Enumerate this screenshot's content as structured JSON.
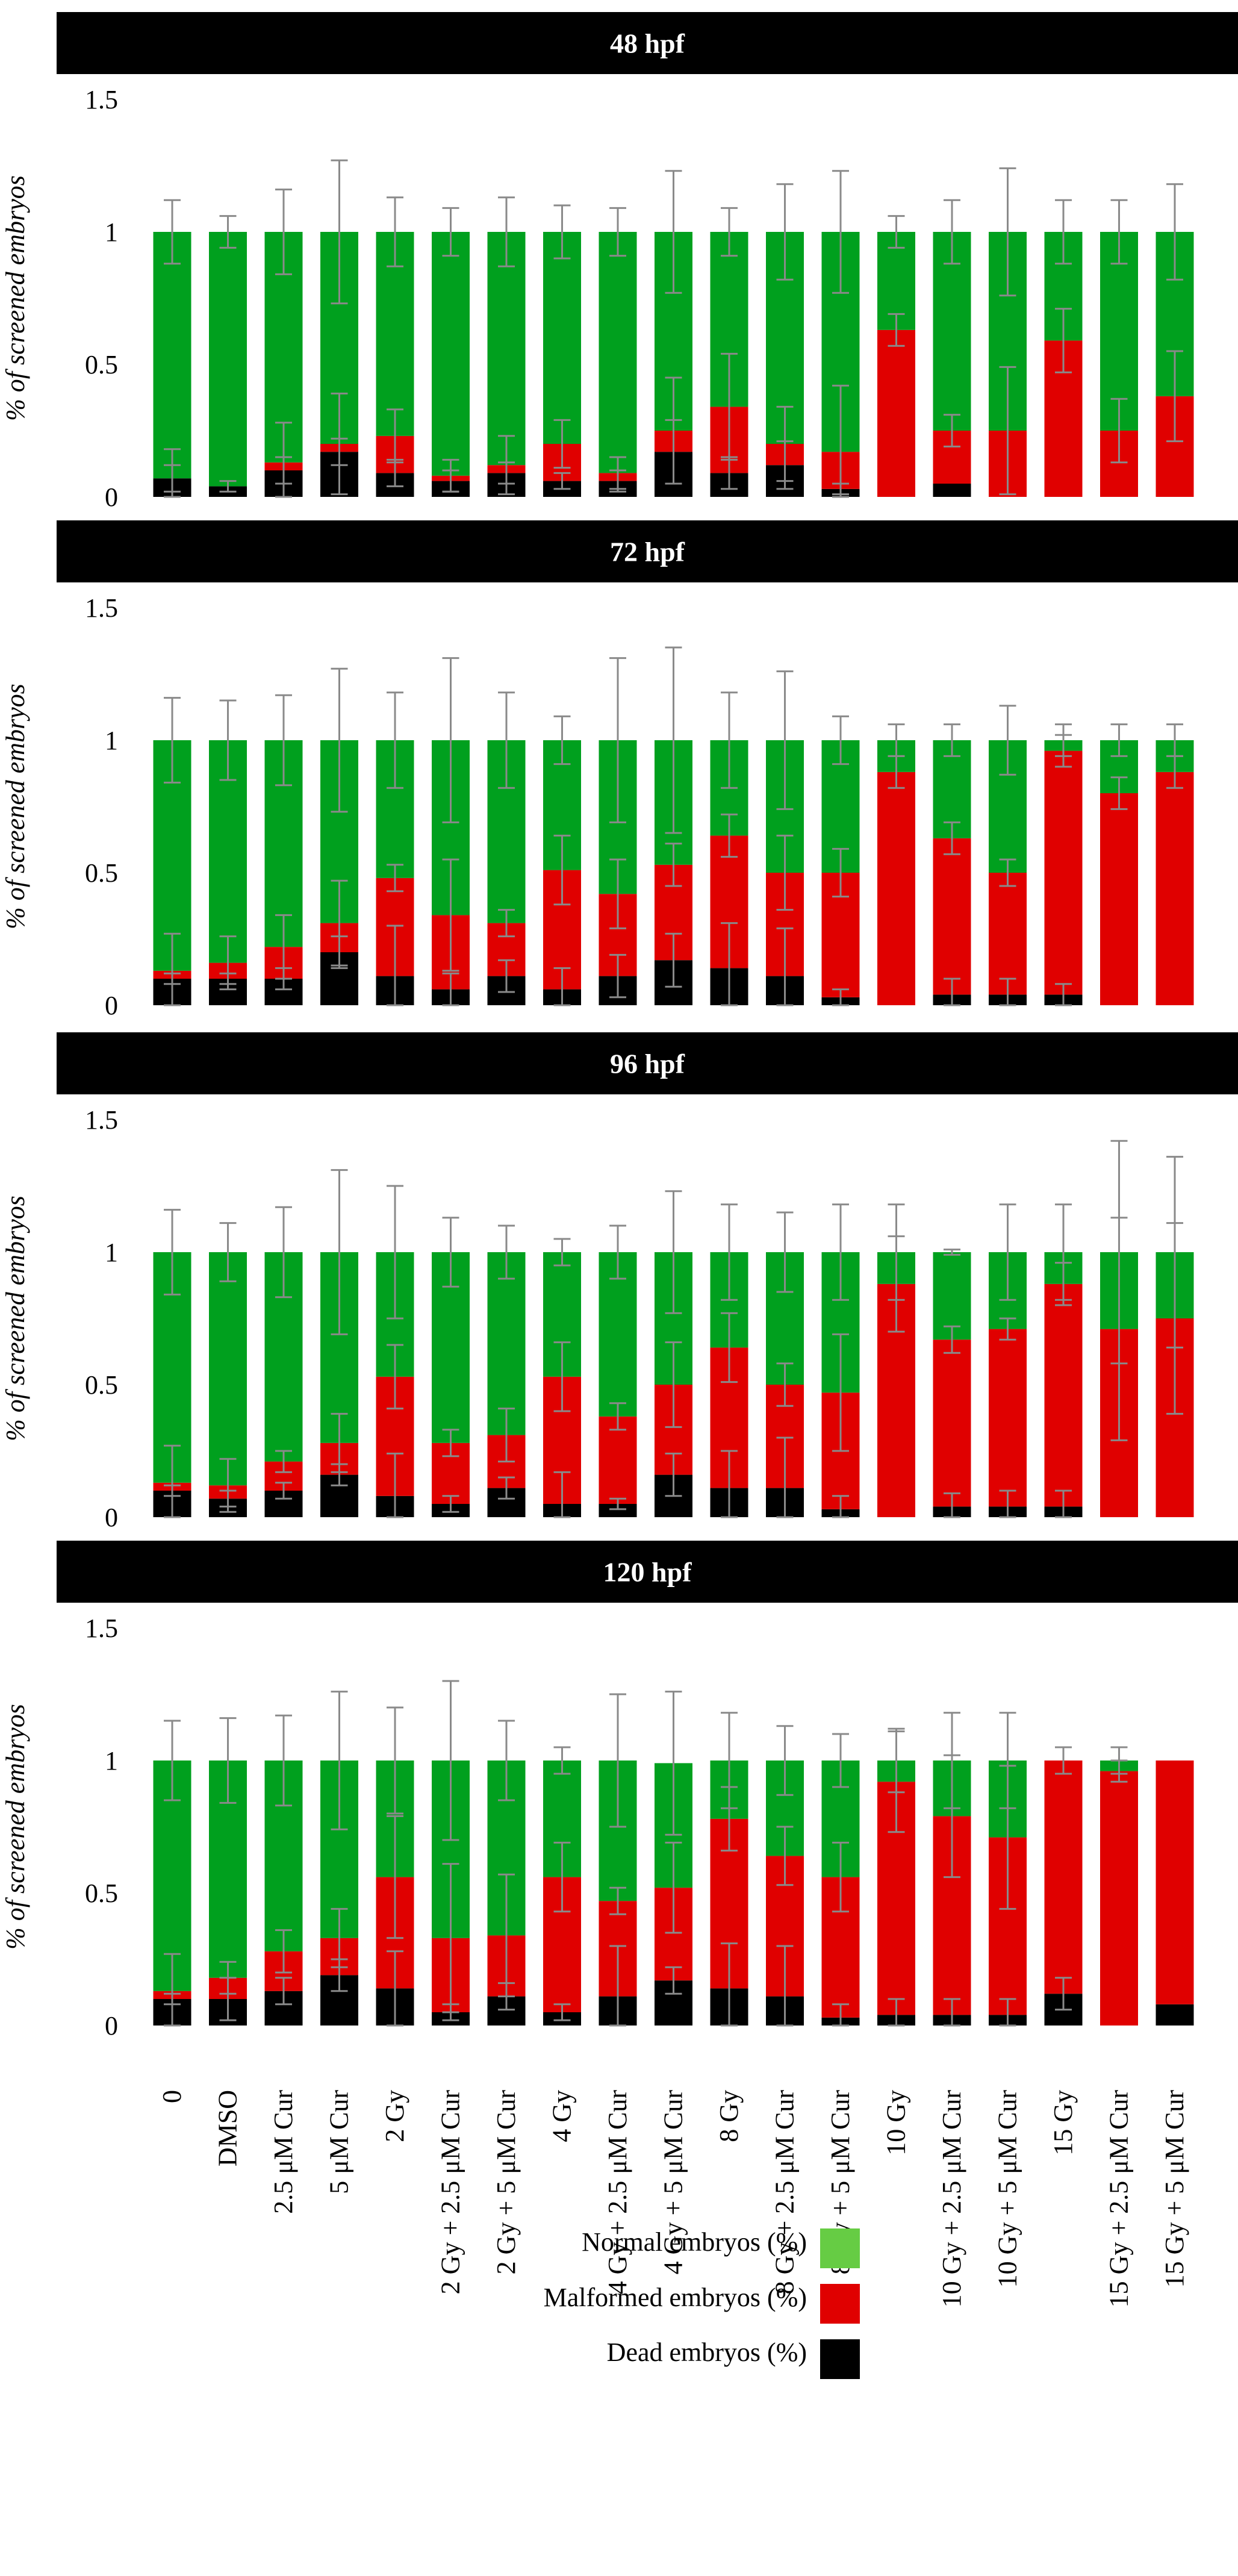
{
  "colors": {
    "normal": "#00a01e",
    "normal_legend": "#66cc44",
    "malformed": "#e00000",
    "dead": "#000000",
    "header": "#000000",
    "error": "#8a8a8a"
  },
  "chart_data": {
    "type": "bar",
    "stacked": true,
    "ylabel": "% of screened embryos",
    "ylim": [
      0,
      1.5
    ],
    "yticks": [
      "0",
      "0.5",
      "1",
      "1.5"
    ],
    "categories": [
      "0",
      "DMSO",
      "2.5 μM Cur",
      "5 μM Cur",
      "2 Gy",
      "2 Gy + 2.5 μM Cur",
      "2 Gy + 5 μM Cur",
      "4 Gy",
      "4 Gy + 2.5 μM Cur",
      "4 Gy + 5 μM Cur",
      "8 Gy",
      "8 Gy + 2.5 μM Cur",
      "8 Gy + 5 μM Cur",
      "10 Gy",
      "10 Gy + 2.5 μM Cur",
      "10 Gy + 5 μM Cur",
      "15 Gy",
      "15 Gy + 2.5 μM Cur",
      "15 Gy + 5 μM Cur"
    ],
    "legend": [
      {
        "key": "normal",
        "label": "Normal embryos (%)"
      },
      {
        "key": "malformed",
        "label": "Malformed embryos (%)"
      },
      {
        "key": "dead",
        "label": "Dead embryos (%)"
      }
    ],
    "panels": [
      {
        "title": "48 hpf",
        "dead": [
          0.07,
          0.04,
          0.1,
          0.17,
          0.09,
          0.06,
          0.09,
          0.06,
          0.06,
          0.17,
          0.09,
          0.12,
          0.03,
          0,
          0.05,
          0,
          0,
          0,
          0
        ],
        "malformed": [
          0,
          0,
          0.03,
          0.03,
          0.14,
          0.02,
          0.03,
          0.14,
          0.03,
          0.08,
          0.25,
          0.08,
          0.14,
          0.63,
          0.2,
          0.25,
          0.59,
          0.25,
          0.38
        ],
        "normal": [
          0.93,
          0.96,
          0.87,
          0.8,
          0.77,
          0.92,
          0.88,
          0.8,
          0.91,
          0.75,
          0.66,
          0.8,
          0.83,
          0.37,
          0.75,
          0.75,
          0.41,
          0.75,
          0.62
        ],
        "err_top": [
          0.12,
          0.06,
          0.16,
          0.27,
          0.13,
          0.09,
          0.13,
          0.1,
          0.09,
          0.23,
          0.09,
          0.18,
          0.23,
          0.06,
          0.12,
          0.24,
          0.12,
          0.12,
          0.18
        ],
        "err_mid": [
          0.11,
          0,
          0.15,
          0.19,
          0.1,
          0.06,
          0.11,
          0.09,
          0.06,
          0.2,
          0.2,
          0.14,
          0.25,
          0.06,
          0.06,
          0.24,
          0.12,
          0.12,
          0.17
        ],
        "err_low": [
          0.05,
          0.02,
          0.05,
          0.05,
          0.05,
          0.04,
          0.04,
          0.03,
          0.04,
          0.12,
          0.06,
          0.09,
          0.02,
          0,
          0,
          0,
          0,
          0,
          0
        ]
      },
      {
        "title": "72 hpf",
        "dead": [
          0.1,
          0.1,
          0.1,
          0.2,
          0.11,
          0.06,
          0.11,
          0.06,
          0.11,
          0.17,
          0.14,
          0.11,
          0.03,
          0,
          0.04,
          0.04,
          0.04,
          0,
          0
        ],
        "malformed": [
          0.03,
          0.06,
          0.12,
          0.11,
          0.37,
          0.28,
          0.2,
          0.45,
          0.31,
          0.36,
          0.5,
          0.39,
          0.47,
          0.88,
          0.59,
          0.46,
          0.92,
          0.8,
          0.88
        ],
        "normal": [
          0.87,
          0.84,
          0.78,
          0.69,
          0.52,
          0.66,
          0.69,
          0.49,
          0.58,
          0.47,
          0.36,
          0.5,
          0.5,
          0.12,
          0.37,
          0.5,
          0.04,
          0.2,
          0.12
        ],
        "err_top": [
          0.16,
          0.15,
          0.17,
          0.27,
          0.18,
          0.31,
          0.18,
          0.09,
          0.31,
          0.35,
          0.18,
          0.26,
          0.09,
          0.06,
          0.06,
          0.13,
          0.06,
          0.06,
          0.06
        ],
        "err_mid": [
          0.14,
          0.1,
          0.12,
          0.16,
          0.05,
          0.21,
          0.05,
          0.13,
          0.13,
          0.08,
          0.08,
          0.14,
          0.09,
          0.06,
          0.06,
          0.05,
          0.06,
          0.06,
          0.06
        ],
        "err_low": [
          0.02,
          0.02,
          0.04,
          0.06,
          0.19,
          0.06,
          0.06,
          0.08,
          0.08,
          0.1,
          0.17,
          0.18,
          0.03,
          0,
          0.06,
          0.06,
          0.04,
          0,
          0
        ]
      },
      {
        "title": "96 hpf",
        "dead": [
          0.1,
          0.07,
          0.1,
          0.16,
          0.08,
          0.05,
          0.11,
          0.05,
          0.05,
          0.16,
          0.11,
          0.11,
          0.03,
          0,
          0.04,
          0.04,
          0.04,
          0,
          0
        ],
        "malformed": [
          0.03,
          0.05,
          0.11,
          0.12,
          0.45,
          0.23,
          0.2,
          0.48,
          0.33,
          0.34,
          0.53,
          0.39,
          0.44,
          0.88,
          0.63,
          0.67,
          0.84,
          0.71,
          0.75
        ],
        "normal": [
          0.87,
          0.88,
          0.79,
          0.72,
          0.47,
          0.72,
          0.69,
          0.47,
          0.62,
          0.5,
          0.36,
          0.5,
          0.53,
          0.12,
          0.33,
          0.29,
          0.12,
          0.29,
          0.25
        ],
        "err_top": [
          0.16,
          0.11,
          0.17,
          0.31,
          0.25,
          0.13,
          0.1,
          0.05,
          0.1,
          0.23,
          0.18,
          0.15,
          0.18,
          0.18,
          0.01,
          0.18,
          0.18,
          0.42,
          0.36
        ],
        "err_mid": [
          0.14,
          0.1,
          0.04,
          0.11,
          0.12,
          0.05,
          0.1,
          0.13,
          0.05,
          0.16,
          0.13,
          0.08,
          0.22,
          0.18,
          0.05,
          0.04,
          0.08,
          0.42,
          0.36
        ],
        "err_low": [
          0.02,
          0.03,
          0.03,
          0.04,
          0.16,
          0.03,
          0.04,
          0.12,
          0.02,
          0.08,
          0.14,
          0.19,
          0.05,
          0,
          0.05,
          0.06,
          0.06,
          0,
          0
        ]
      },
      {
        "title": "120 hpf",
        "dead": [
          0.1,
          0.1,
          0.13,
          0.19,
          0.14,
          0.05,
          0.11,
          0.05,
          0.11,
          0.17,
          0.14,
          0.11,
          0.03,
          0.04,
          0.04,
          0.04,
          0.12,
          0,
          0.08
        ],
        "malformed": [
          0.03,
          0.08,
          0.15,
          0.14,
          0.42,
          0.28,
          0.23,
          0.51,
          0.36,
          0.35,
          0.64,
          0.53,
          0.53,
          0.88,
          0.75,
          0.67,
          0.88,
          0.96,
          0.92
        ],
        "normal": [
          0.87,
          0.82,
          0.72,
          0.67,
          0.44,
          0.67,
          0.66,
          0.44,
          0.53,
          0.47,
          0.22,
          0.36,
          0.44,
          0.08,
          0.21,
          0.29,
          0,
          0.04,
          0
        ],
        "err_top": [
          0.15,
          0.16,
          0.17,
          0.26,
          0.2,
          0.3,
          0.15,
          0.05,
          0.25,
          0.27,
          0.18,
          0.13,
          0.1,
          0.12,
          0.18,
          0.18,
          0.05,
          0.05,
          0
        ],
        "err_mid": [
          0.14,
          0.06,
          0.08,
          0.11,
          0.23,
          0.28,
          0.23,
          0.13,
          0.05,
          0.17,
          0.12,
          0.11,
          0.13,
          0.19,
          0.23,
          0.27,
          0,
          0.04,
          0
        ],
        "err_low": [
          0.02,
          0.08,
          0.05,
          0.06,
          0.14,
          0.03,
          0.05,
          0.03,
          0.19,
          0.05,
          0.17,
          0.19,
          0.05,
          0.06,
          0.06,
          0.06,
          0.06,
          0,
          0
        ]
      }
    ]
  }
}
